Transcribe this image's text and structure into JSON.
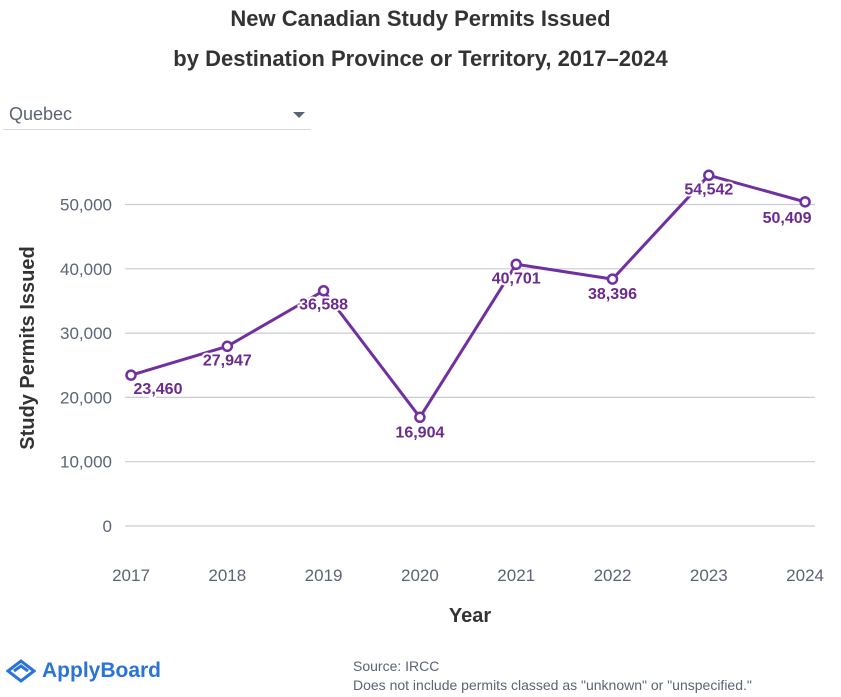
{
  "chart_data": {
    "type": "line",
    "title": "New Canadian Study Permits Issued",
    "subtitle": "by Destination Province or Territory, 2017–2024",
    "xlabel": "Year",
    "ylabel": "Study Permits Issued",
    "categories": [
      "2017",
      "2018",
      "2019",
      "2020",
      "2021",
      "2022",
      "2023",
      "2024"
    ],
    "series": [
      {
        "name": "Quebec",
        "values": [
          23460,
          27947,
          36588,
          16904,
          40701,
          38396,
          54542,
          50409
        ]
      }
    ],
    "data_labels": [
      "23,460",
      "27,947",
      "36,588",
      "16,904",
      "40,701",
      "38,396",
      "54,542",
      "50,409"
    ],
    "y_ticks": [
      0,
      10000,
      20000,
      30000,
      40000,
      50000
    ],
    "y_tick_labels": [
      "0",
      "10,000",
      "20,000",
      "30,000",
      "40,000",
      "50,000"
    ],
    "ylim": [
      0,
      57000
    ],
    "grid": true,
    "line_color": "#7030a0"
  },
  "filter": {
    "selected": "Quebec"
  },
  "footer": {
    "brand": "ApplyBoard",
    "source": "Source: IRCC",
    "note": "Does not include permits classed as \"unknown\" or \"unspecified.\""
  },
  "colors": {
    "brand": "#2a73d9",
    "series": "#7030a0"
  }
}
